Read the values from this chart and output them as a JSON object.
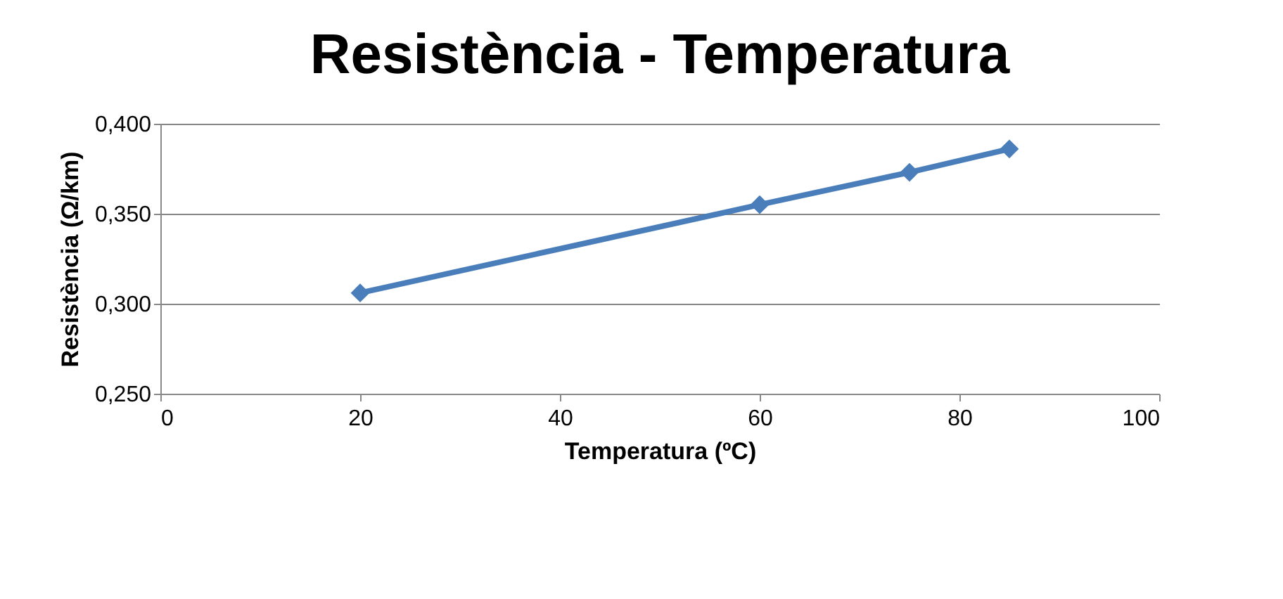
{
  "chart_data": {
    "type": "line",
    "title": "Resistència - Temperatura",
    "xlabel": "Temperatura (ºC)",
    "ylabel": "Resistència (Ω/km)",
    "x": [
      20,
      60,
      75,
      85
    ],
    "series": [
      {
        "color": "#4a7ebb",
        "values": [
          0.306,
          0.355,
          0.373,
          0.386
        ]
      }
    ],
    "xlim": [
      0,
      100
    ],
    "xticks": [
      0,
      20,
      40,
      60,
      80,
      100
    ],
    "ylim": [
      0.25,
      0.4
    ],
    "yticks": [
      {
        "value": 0.25,
        "label": "0,250"
      },
      {
        "value": 0.3,
        "label": "0,300"
      },
      {
        "value": 0.35,
        "label": "0,350"
      },
      {
        "value": 0.4,
        "label": "0,400"
      }
    ],
    "grid": "y",
    "marker": "diamond",
    "line_style": "solid"
  }
}
